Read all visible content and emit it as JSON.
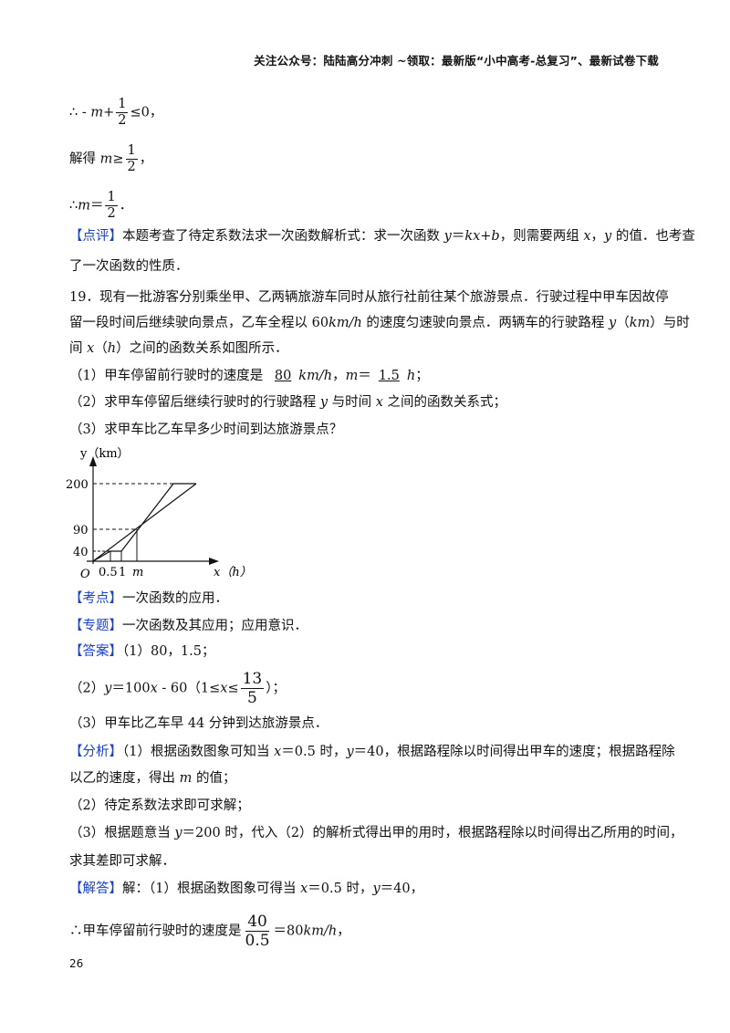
{
  "header": "关注公众号：陆陆高分冲刺 ~领取：最新版“小中高考-总复习”、最新试卷下载",
  "proof": {
    "l1_a": "∴ - ",
    "l1_m": "m",
    "l1_b": "+",
    "l1_num": "1",
    "l1_den": "2",
    "l1_c": "≤0，",
    "l2_a": "解得 ",
    "l2_m": "m",
    "l2_b": "≥",
    "l2_num": "1",
    "l2_den": "2",
    "l2_c": "，",
    "l3_a": "∴",
    "l3_m": "m",
    "l3_b": "＝",
    "l3_num": "1",
    "l3_den": "2",
    "l3_c": "．"
  },
  "review": {
    "tag": "【点评】",
    "line1_a": "本题考查了待定系数法求一次函数解析式：求一次函数 ",
    "line1_y": "y",
    "line1_eq": "＝",
    "line1_kxb": "kx+b",
    "line1_b": "，则需要两组 ",
    "line1_x": "x",
    "line1_c": "，",
    "line1_y2": "y",
    "line1_d": " 的值．也考查",
    "line2": "了一次函数的性质．"
  },
  "problem": {
    "stem1": "19．现有一批游客分别乘坐甲、乙两辆旅游车同时从旅行社前往某个旅游景点．行驶过程中甲车因故停",
    "stem2_a": "留一段时间后继续驶向景点，乙车全程以 60",
    "stem2_unit": "km/h",
    "stem2_b": " 的速度匀速驶向景点．两辆车的行驶路程 ",
    "stem2_y": "y",
    "stem2_c": "（",
    "stem2_km": "km",
    "stem2_d": "）与时",
    "stem3_a": "间 ",
    "stem3_x": "x",
    "stem3_b": "（",
    "stem3_h": "h",
    "stem3_c": "）之间的函数关系如图所示．",
    "q1_a": "（1）甲车停留前行驶时的速度是 ",
    "q1_ans1": "80",
    "q1_unit": "km/h",
    "q1_b": "，",
    "q1_m": "m",
    "q1_eq": "＝",
    "q1_ans2": "1.5",
    "q1_h": "h",
    "q1_c": "；",
    "q2_a": "（2）求甲车停留后继续行驶时的行驶路程 ",
    "q2_y": "y",
    "q2_b": " 与时间 ",
    "q2_x": "x",
    "q2_c": " 之间的函数关系式；",
    "q3": "（3）求甲车比乙车早多少时间到达旅游景点？"
  },
  "graph": {
    "y_axis_label": "y（km）",
    "x_axis_label": "x（h）",
    "origin": "O",
    "y_ticks": [
      "200",
      "90",
      "40"
    ],
    "x_ticks": [
      "0.5",
      "1",
      "m"
    ]
  },
  "solution": {
    "kaodian_tag": "【考点】",
    "kaodian": "一次函数的应用．",
    "zhuanti_tag": "【专题】",
    "zhuanti": "一次函数及其应用；应用意识．",
    "daan_tag": "【答案】",
    "daan1": "（1）80，1.5；",
    "daan2_a": "（2）",
    "daan2_y": "y",
    "daan2_b": "＝100",
    "daan2_x": "x",
    "daan2_c": " - 60（1≤",
    "daan2_x2": "x",
    "daan2_d": "≤",
    "daan2_num": "13",
    "daan2_den": "5",
    "daan2_e": "）；",
    "daan3": "（3）甲车比乙车早 44 分钟到达旅游景点．",
    "fenxi_tag": "【分析】",
    "fenxi1_a": "（1）根据函数图象可知当 ",
    "fenxi1_x": "x",
    "fenxi1_b": "＝0.5 时，",
    "fenxi1_y": "y",
    "fenxi1_c": "＝40，根据路程除以时间得出甲车的速度；根据路程除",
    "fenxi2_a": "以乙的速度，得出 ",
    "fenxi2_m": "m",
    "fenxi2_b": " 的值；",
    "fenxi3": "（2）待定系数法求即可求解；",
    "fenxi4_a": "（3）根据题意当 ",
    "fenxi4_y": "y",
    "fenxi4_b": "＝200 时，代入（2）的解析式得出甲的用时，根据路程除以时间得出乙所用的时间，",
    "fenxi5": "求其差即可求解．",
    "jieda_tag": "【解答】",
    "jieda1_a": "解：（1）根据函数图象可得当 ",
    "jieda1_x": "x",
    "jieda1_b": "＝0.5 时，",
    "jieda1_y": "y",
    "jieda1_c": "＝40，",
    "jieda2_a": "∴甲车停留前行驶时的速度是",
    "jieda2_num": "40",
    "jieda2_den": "0.5",
    "jieda2_b": "＝80",
    "jieda2_unit": "km/h",
    "jieda2_c": "，"
  },
  "page_number": "26"
}
